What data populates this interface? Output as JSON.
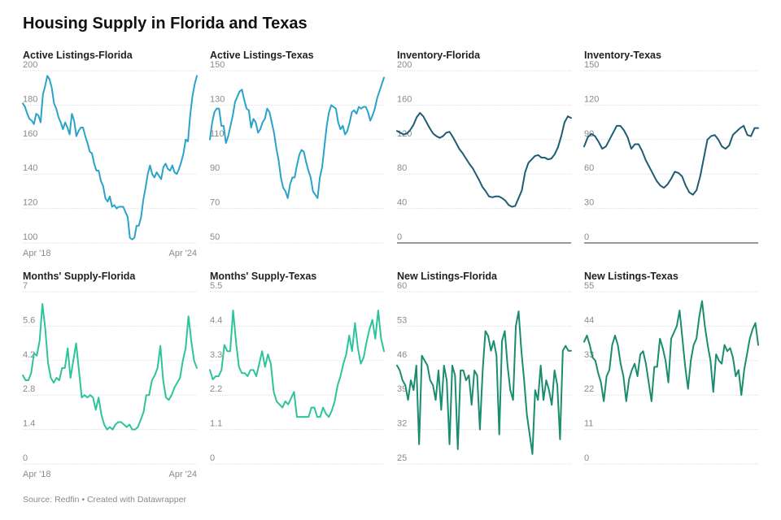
{
  "title": "Housing Supply in Florida and Texas",
  "source": "Source: Redfin • Created with Datawrapper",
  "colors": {
    "light_blue": "#2aa3c9",
    "dark_teal": "#1d5d73",
    "mint": "#2dc39b",
    "green": "#1a8d6e",
    "grid": "#dddddd",
    "axis": "#333333",
    "tick_text": "#8a8a8a"
  },
  "chart_data": [
    {
      "type": "line",
      "title": "Active Listings-Florida",
      "color_key": "light_blue",
      "yticks": [
        "100",
        "120",
        "140",
        "160",
        "180",
        "200"
      ],
      "ylim": [
        100,
        200
      ],
      "xlabels": [
        "Apr '18",
        "Apr '24"
      ],
      "baseline": false,
      "values": [
        181,
        179,
        175,
        172,
        171,
        169,
        175,
        174,
        170,
        186,
        191,
        197,
        195,
        190,
        181,
        178,
        173,
        170,
        166,
        170,
        167,
        163,
        175,
        171,
        162,
        165,
        167,
        167,
        162,
        158,
        153,
        152,
        146,
        142,
        142,
        136,
        133,
        126,
        124,
        127,
        121,
        122,
        120,
        121,
        121,
        121,
        118,
        115,
        103,
        102,
        103,
        110,
        110,
        115,
        125,
        132,
        140,
        145,
        140,
        138,
        141,
        139,
        137,
        144,
        146,
        143,
        142,
        145,
        141,
        140,
        143,
        147,
        152,
        160,
        159,
        174,
        185,
        192,
        197
      ]
    },
    {
      "type": "line",
      "title": "Active Listings-Texas",
      "color_key": "light_blue",
      "yticks": [
        "50",
        "70",
        "90",
        "110",
        "130",
        "150"
      ],
      "ylim": [
        50,
        150
      ],
      "xlabels": [],
      "baseline": false,
      "values": [
        110,
        120,
        126,
        128,
        128,
        118,
        118,
        108,
        112,
        118,
        124,
        132,
        135,
        138,
        139,
        133,
        128,
        127,
        117,
        122,
        120,
        114,
        116,
        120,
        122,
        128,
        126,
        120,
        114,
        105,
        98,
        88,
        82,
        80,
        76,
        84,
        88,
        88,
        95,
        101,
        104,
        103,
        97,
        92,
        88,
        80,
        78,
        76,
        88,
        94,
        106,
        118,
        126,
        130,
        129,
        128,
        120,
        116,
        118,
        113,
        115,
        120,
        126,
        127,
        125,
        129,
        128,
        129,
        129,
        126,
        121,
        124,
        128,
        134,
        138,
        142,
        146
      ]
    },
    {
      "type": "line",
      "title": "Inventory-Florida",
      "color_key": "dark_teal",
      "yticks": [
        "0",
        "40",
        "80",
        "120",
        "160",
        "200"
      ],
      "ylim": [
        0,
        200
      ],
      "xlabels": [],
      "baseline": true,
      "values": [
        130,
        128,
        126,
        127,
        131,
        137,
        146,
        151,
        147,
        140,
        133,
        127,
        124,
        122,
        124,
        128,
        129,
        123,
        116,
        109,
        104,
        98,
        92,
        87,
        80,
        73,
        65,
        60,
        54,
        53,
        54,
        54,
        52,
        49,
        44,
        42,
        43,
        52,
        61,
        82,
        93,
        97,
        101,
        102,
        99,
        99,
        97,
        98,
        103,
        111,
        124,
        140,
        147,
        145
      ]
    },
    {
      "type": "line",
      "title": "Inventory-Texas",
      "color_key": "dark_teal",
      "yticks": [
        "0",
        "30",
        "60",
        "90",
        "120",
        "150"
      ],
      "ylim": [
        0,
        150
      ],
      "xlabels": [],
      "baseline": true,
      "values": [
        84,
        92,
        95,
        93,
        88,
        82,
        84,
        90,
        96,
        102,
        102,
        98,
        92,
        82,
        86,
        86,
        80,
        72,
        66,
        60,
        54,
        50,
        48,
        51,
        56,
        62,
        61,
        58,
        50,
        44,
        42,
        46,
        58,
        74,
        90,
        93,
        94,
        90,
        84,
        82,
        85,
        94,
        97,
        100,
        102,
        94,
        93,
        100,
        100
      ]
    },
    {
      "type": "line",
      "title": "Months' Supply-Florida",
      "color_key": "mint",
      "yticks": [
        "0",
        "1.4",
        "2.8",
        "4.2",
        "5.6",
        "7"
      ],
      "ylim": [
        0,
        7
      ],
      "xlabels": [
        "Apr '18",
        "Apr '24"
      ],
      "baseline": false,
      "values": [
        3.6,
        3.4,
        3.4,
        3.7,
        4.5,
        4.4,
        5.0,
        6.5,
        5.5,
        4.1,
        3.5,
        3.3,
        3.5,
        3.4,
        3.9,
        3.9,
        4.7,
        3.5,
        4.2,
        4.9,
        3.8,
        2.7,
        2.8,
        2.7,
        2.8,
        2.7,
        2.2,
        2.7,
        2.0,
        1.6,
        1.4,
        1.5,
        1.4,
        1.6,
        1.7,
        1.7,
        1.6,
        1.5,
        1.6,
        1.4,
        1.4,
        1.5,
        1.8,
        2.1,
        2.8,
        2.8,
        3.4,
        3.6,
        3.9,
        4.8,
        3.4,
        2.7,
        2.6,
        2.8,
        3.1,
        3.3,
        3.5,
        4.2,
        4.7,
        6.0,
        5.0,
        4.2,
        3.9
      ]
    },
    {
      "type": "line",
      "title": "Months' Supply-Texas",
      "color_key": "mint",
      "yticks": [
        "0",
        "1.1",
        "2.2",
        "3.3",
        "4.4",
        "5.5"
      ],
      "ylim": [
        0,
        5.5
      ],
      "xlabels": [],
      "baseline": false,
      "values": [
        3.0,
        2.7,
        2.8,
        2.8,
        3.0,
        3.8,
        3.6,
        3.6,
        4.9,
        3.9,
        3.1,
        2.9,
        2.9,
        2.8,
        3.0,
        3.0,
        2.8,
        3.2,
        3.6,
        3.1,
        3.5,
        3.2,
        2.3,
        2.0,
        1.9,
        1.8,
        2.0,
        1.9,
        2.1,
        2.3,
        1.5,
        1.5,
        1.5,
        1.5,
        1.5,
        1.8,
        1.8,
        1.5,
        1.5,
        1.8,
        1.6,
        1.5,
        1.7,
        2.0,
        2.5,
        2.8,
        3.2,
        3.5,
        4.1,
        3.6,
        4.5,
        3.7,
        3.2,
        3.4,
        3.9,
        4.3,
        4.6,
        4.0,
        4.9,
        4.0,
        3.6
      ]
    },
    {
      "type": "line",
      "title": "New Listings-Florida",
      "color_key": "green",
      "yticks": [
        "25",
        "32",
        "39",
        "46",
        "53",
        "60"
      ],
      "ylim": [
        25,
        60
      ],
      "xlabels": [],
      "baseline": false,
      "values": [
        45,
        44,
        42,
        41,
        38,
        42,
        40,
        45,
        29,
        47,
        46,
        45,
        42,
        41,
        38,
        44,
        36,
        45,
        42,
        29,
        45,
        43,
        28,
        44,
        44,
        42,
        43,
        37,
        44,
        43,
        32,
        44,
        52,
        51,
        48,
        50,
        47,
        31,
        50,
        52,
        45,
        40,
        38,
        53,
        56,
        48,
        42,
        35,
        31,
        27,
        40,
        38,
        45,
        38,
        42,
        40,
        37,
        44,
        41,
        30,
        48,
        49,
        48,
        48
      ]
    },
    {
      "type": "line",
      "title": "New Listings-Texas",
      "color_key": "green",
      "yticks": [
        "0",
        "11",
        "22",
        "33",
        "44",
        "55"
      ],
      "ylim": [
        0,
        55
      ],
      "xlabels": [],
      "baseline": false,
      "values": [
        39,
        41,
        38,
        34,
        33,
        29,
        26,
        20,
        28,
        30,
        38,
        41,
        38,
        32,
        28,
        20,
        27,
        30,
        32,
        28,
        35,
        36,
        32,
        26,
        20,
        31,
        31,
        40,
        37,
        33,
        26,
        40,
        42,
        44,
        49,
        40,
        31,
        24,
        33,
        38,
        40,
        47,
        52,
        44,
        38,
        33,
        23,
        35,
        33,
        32,
        38,
        36,
        37,
        34,
        28,
        30,
        22,
        30,
        35,
        40,
        43,
        45,
        38
      ]
    }
  ]
}
